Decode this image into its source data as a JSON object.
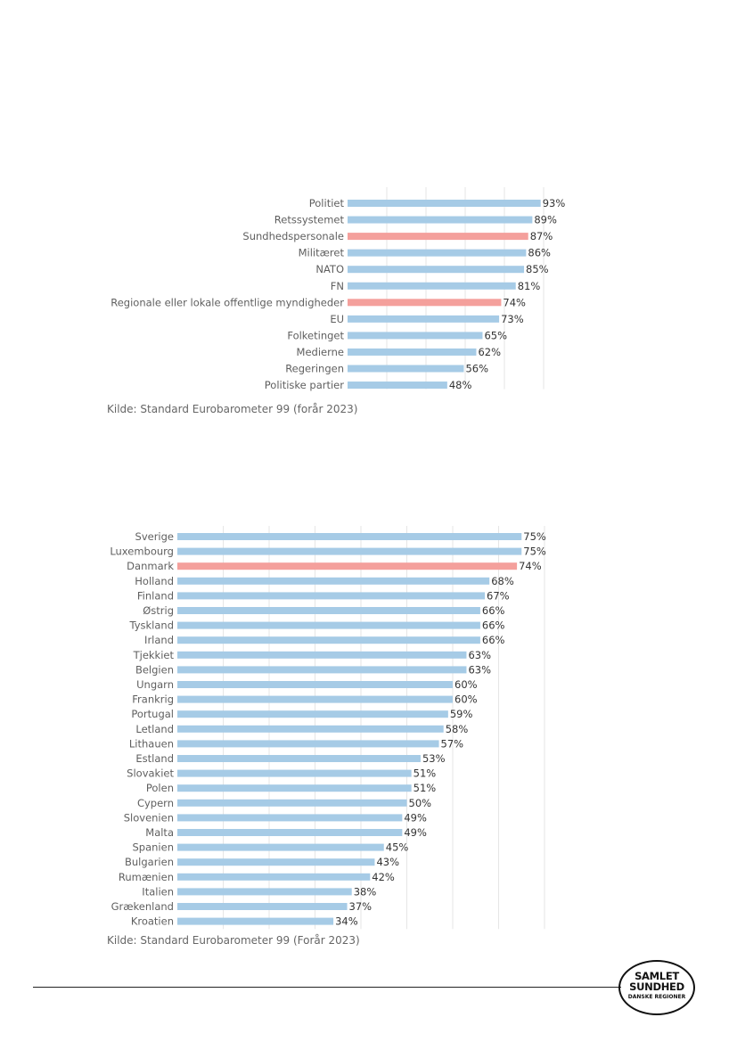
{
  "chart_data": [
    {
      "type": "bar",
      "orientation": "horizontal",
      "title": "",
      "xlabel": "",
      "ylabel": "",
      "xlim": [
        0,
        100
      ],
      "grid": true,
      "categories": [
        "Politiet",
        "Retssystemet",
        "Sundhedspersonale",
        "Militæret",
        "NATO",
        "FN",
        "Regionale eller lokale offentlige myndigheder",
        "EU",
        "Folketinget",
        "Medierne",
        "Regeringen",
        "Politiske partier"
      ],
      "values": [
        93,
        89,
        87,
        86,
        85,
        81,
        74,
        73,
        65,
        62,
        56,
        48
      ],
      "value_labels": [
        "93%",
        "89%",
        "87%",
        "86%",
        "85%",
        "81%",
        "74%",
        "73%",
        "65%",
        "62%",
        "56%",
        "48%"
      ],
      "highlight": [
        "Sundhedspersonale",
        "Regionale eller lokale offentlige myndigheder"
      ],
      "source": "Kilde: Standard Eurobarometer 99 (forår 2023)"
    },
    {
      "type": "bar",
      "orientation": "horizontal",
      "title": "",
      "xlabel": "",
      "ylabel": "",
      "xlim": [
        0,
        80
      ],
      "grid": true,
      "categories": [
        "Sverige",
        "Luxembourg",
        "Danmark",
        "Holland",
        "Finland",
        "Østrig",
        "Tyskland",
        "Irland",
        "Tjekkiet",
        "Belgien",
        "Ungarn",
        "Frankrig",
        "Portugal",
        "Letland",
        "Lithauen",
        "Estland",
        "Slovakiet",
        "Polen",
        "Cypern",
        "Slovenien",
        "Malta",
        "Spanien",
        "Bulgarien",
        "Rumænien",
        "Italien",
        "Grækenland",
        "Kroatien"
      ],
      "values": [
        75,
        75,
        74,
        68,
        67,
        66,
        66,
        66,
        63,
        63,
        60,
        60,
        59,
        58,
        57,
        53,
        51,
        51,
        50,
        49,
        49,
        45,
        43,
        42,
        38,
        37,
        34
      ],
      "value_labels": [
        "75%",
        "75%",
        "74%",
        "68%",
        "67%",
        "66%",
        "66%",
        "66%",
        "63%",
        "63%",
        "60%",
        "60%",
        "59%",
        "58%",
        "57%",
        "53%",
        "51%",
        "51%",
        "50%",
        "49%",
        "49%",
        "45%",
        "43%",
        "42%",
        "38%",
        "37%",
        "34%"
      ],
      "highlight": [
        "Danmark"
      ],
      "source": "Kilde: Standard Eurobarometer 99 (Forår 2023)"
    }
  ],
  "colors": {
    "bar": "#a6cbe6",
    "highlight": "#f4a09c",
    "grid": "#e6e6e6"
  },
  "logo": {
    "line1": "SAMLET",
    "line2": "SUNDHED",
    "line3": "DANSKE REGIONER"
  }
}
